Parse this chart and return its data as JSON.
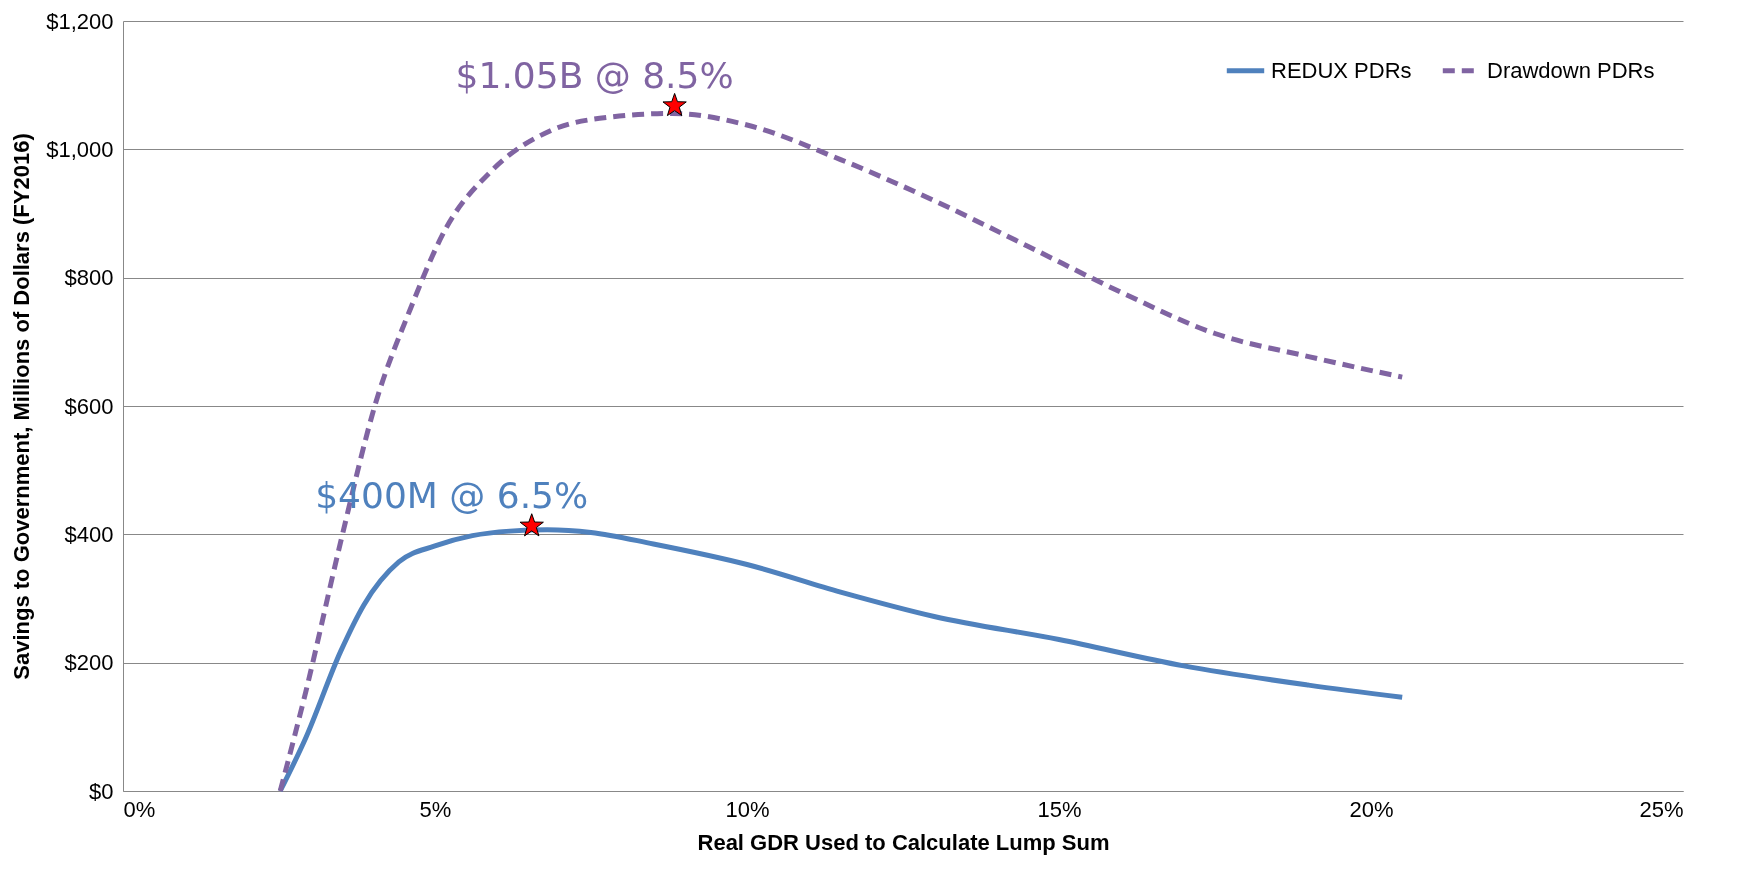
{
  "chart_data": {
    "type": "line",
    "xlabel": "Real GDR Used to Calculate Lump Sum",
    "ylabel": "Savings to Government, Millions of Dollars (FY2016)",
    "xlim": [
      0,
      25
    ],
    "xticks": [
      {
        "value": 0,
        "label": "0%"
      },
      {
        "value": 5,
        "label": "5%"
      },
      {
        "value": 10,
        "label": "10%"
      },
      {
        "value": 15,
        "label": "15%"
      },
      {
        "value": 20,
        "label": "20%"
      },
      {
        "value": 25,
        "label": "25%"
      }
    ],
    "ylim": [
      0,
      1200
    ],
    "yticks": [
      {
        "value": 0,
        "label": "$0"
      },
      {
        "value": 200,
        "label": "$200"
      },
      {
        "value": 400,
        "label": "$400"
      },
      {
        "value": 600,
        "label": "$600"
      },
      {
        "value": 800,
        "label": "$800"
      },
      {
        "value": 1000,
        "label": "$1,000"
      },
      {
        "value": 1200,
        "label": "$1,200"
      }
    ],
    "grid": "y",
    "legend": "top right",
    "series": [
      {
        "name": "REDUX PDRs",
        "color": "#4f81bd",
        "line_style": "solid",
        "x": [
          2.52,
          2.93,
          3.49,
          3.86,
          4.42,
          5.0,
          5.6,
          6.2,
          6.8,
          7.5,
          8.5,
          10,
          11.5,
          13,
          15,
          17,
          19,
          20.5
        ],
        "values": [
          0,
          83,
          218,
          290,
          357,
          382,
          398,
          405,
          407,
          403,
          385,
          353,
          310,
          272,
          236,
          195,
          165,
          146
        ]
      },
      {
        "name": "Drawdown PDRs",
        "color": "#8064a2",
        "line_style": "dashed",
        "x": [
          2.52,
          2.93,
          3.49,
          4.05,
          4.6,
          5.17,
          5.9,
          6.85,
          7.78,
          8.8,
          10,
          11.5,
          13,
          14.5,
          16,
          17.5,
          19,
          20.5
        ],
        "values": [
          0,
          155,
          389,
          605,
          750,
          876,
          966,
          1029,
          1050,
          1056,
          1038,
          984,
          920,
          849,
          777,
          713,
          677,
          645
        ]
      },
      {
        "type": "scatter",
        "marker": "star",
        "color": "#ff0000",
        "x": [
          8.84,
          6.55
        ],
        "values": [
          1068,
          413
        ]
      }
    ],
    "annotations": [
      {
        "text": "$1.05B @ 8.5%",
        "x": 8.84,
        "y": 1068
      },
      {
        "text": "$400M @ 6.5%",
        "x": 6.55,
        "y": 413
      }
    ]
  }
}
